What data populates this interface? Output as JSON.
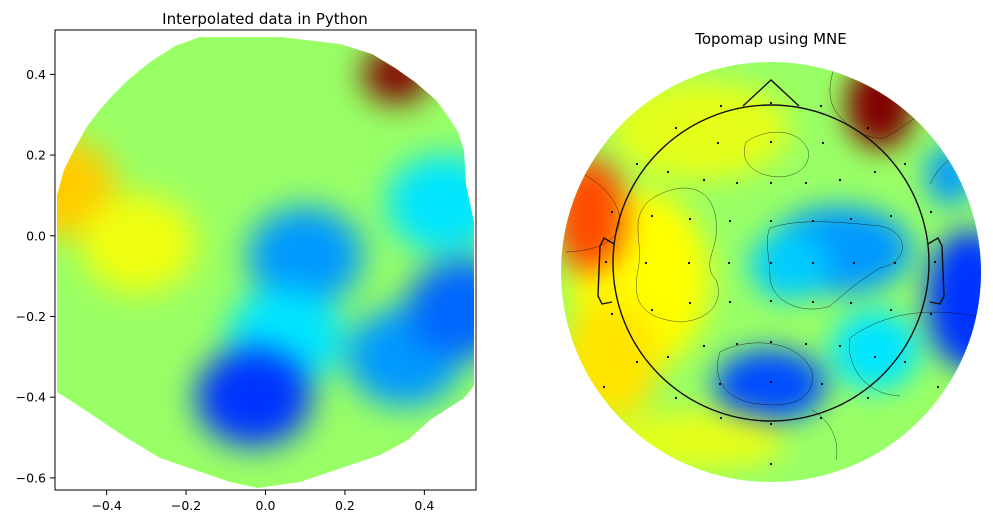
{
  "chart_data": [
    {
      "type": "heatmap",
      "title": "Interpolated data in Python",
      "colormap": "jet",
      "xlim": [
        -0.53,
        0.53
      ],
      "ylim": [
        -0.63,
        0.51
      ],
      "xticks": [
        -0.4,
        -0.2,
        0.0,
        0.2,
        0.4
      ],
      "xtick_labels": [
        "−0.4",
        "−0.2",
        "0.0",
        "0.2",
        "0.4"
      ],
      "yticks": [
        0.4,
        0.2,
        0.0,
        -0.2,
        -0.4,
        -0.6
      ],
      "ytick_labels": [
        "0.4",
        "0.2",
        "0.0",
        "−0.2",
        "−0.4",
        "−0.6"
      ],
      "grid": false,
      "field_range": [
        -1,
        1
      ],
      "field_features": [
        {
          "x": 0.33,
          "y": 0.4,
          "value": 1.0
        },
        {
          "x": -0.52,
          "y": 0.12,
          "value": 0.35
        },
        {
          "x": -0.32,
          "y": -0.02,
          "value": 0.22
        },
        {
          "x": 0.1,
          "y": -0.05,
          "value": -0.45
        },
        {
          "x": 0.05,
          "y": -0.25,
          "value": -0.3
        },
        {
          "x": -0.03,
          "y": -0.4,
          "value": -0.65
        },
        {
          "x": 0.35,
          "y": -0.3,
          "value": -0.45
        },
        {
          "x": 0.5,
          "y": -0.18,
          "value": -0.55
        },
        {
          "x": 0.45,
          "y": 0.08,
          "value": -0.3
        }
      ]
    },
    {
      "type": "heatmap",
      "title": "Topomap using MNE",
      "colormap": "jet",
      "field_range": [
        -1,
        1
      ],
      "features": [
        {
          "name": "upper-right red peak",
          "value": 1.0
        },
        {
          "name": "left orange lobe",
          "value": 0.6
        },
        {
          "name": "central blue trough",
          "value": -0.45
        },
        {
          "name": "lower-center blue trough",
          "value": -0.6
        },
        {
          "name": "right blue trough",
          "value": -0.65
        }
      ],
      "sensor_markers": true,
      "contour_lines": true,
      "head_outline": true
    }
  ]
}
